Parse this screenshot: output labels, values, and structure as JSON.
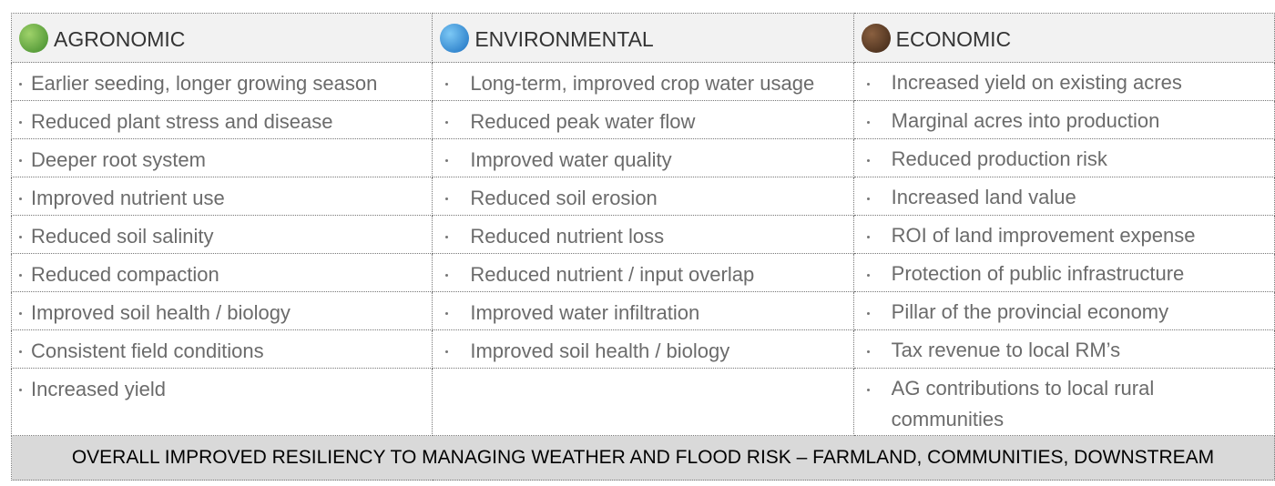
{
  "table": {
    "headers": [
      "AGRONOMIC",
      "ENVIRONMENTAL",
      "ECONOMIC"
    ],
    "rows": [
      [
        "Earlier seeding, longer growing season",
        "Long-term, improved crop water usage",
        "Increased yield on existing acres"
      ],
      [
        "Reduced plant stress and disease",
        "Reduced peak water flow",
        "Marginal acres into production"
      ],
      [
        "Deeper root system",
        "Improved water quality",
        "Reduced production risk"
      ],
      [
        "Improved nutrient use",
        "Reduced soil erosion",
        "Increased land value"
      ],
      [
        "Reduced soil salinity",
        "Reduced nutrient loss",
        "ROI of land improvement expense"
      ],
      [
        "Reduced compaction",
        "Reduced nutrient / input overlap",
        "Protection of public infrastructure"
      ],
      [
        "Improved soil health / biology",
        "Improved water infiltration",
        "Pillar of the provincial economy"
      ],
      [
        "Consistent field conditions",
        "Improved soil health / biology",
        "Tax revenue to local RM’s"
      ],
      [
        "Increased yield",
        null,
        "AG contributions to local rural communities"
      ]
    ],
    "footer": "OVERALL IMPROVED RESILIENCY TO MANAGING WEATHER AND FLOOD RISK – FARMLAND, COMMUNITIES, DOWNSTREAM"
  }
}
